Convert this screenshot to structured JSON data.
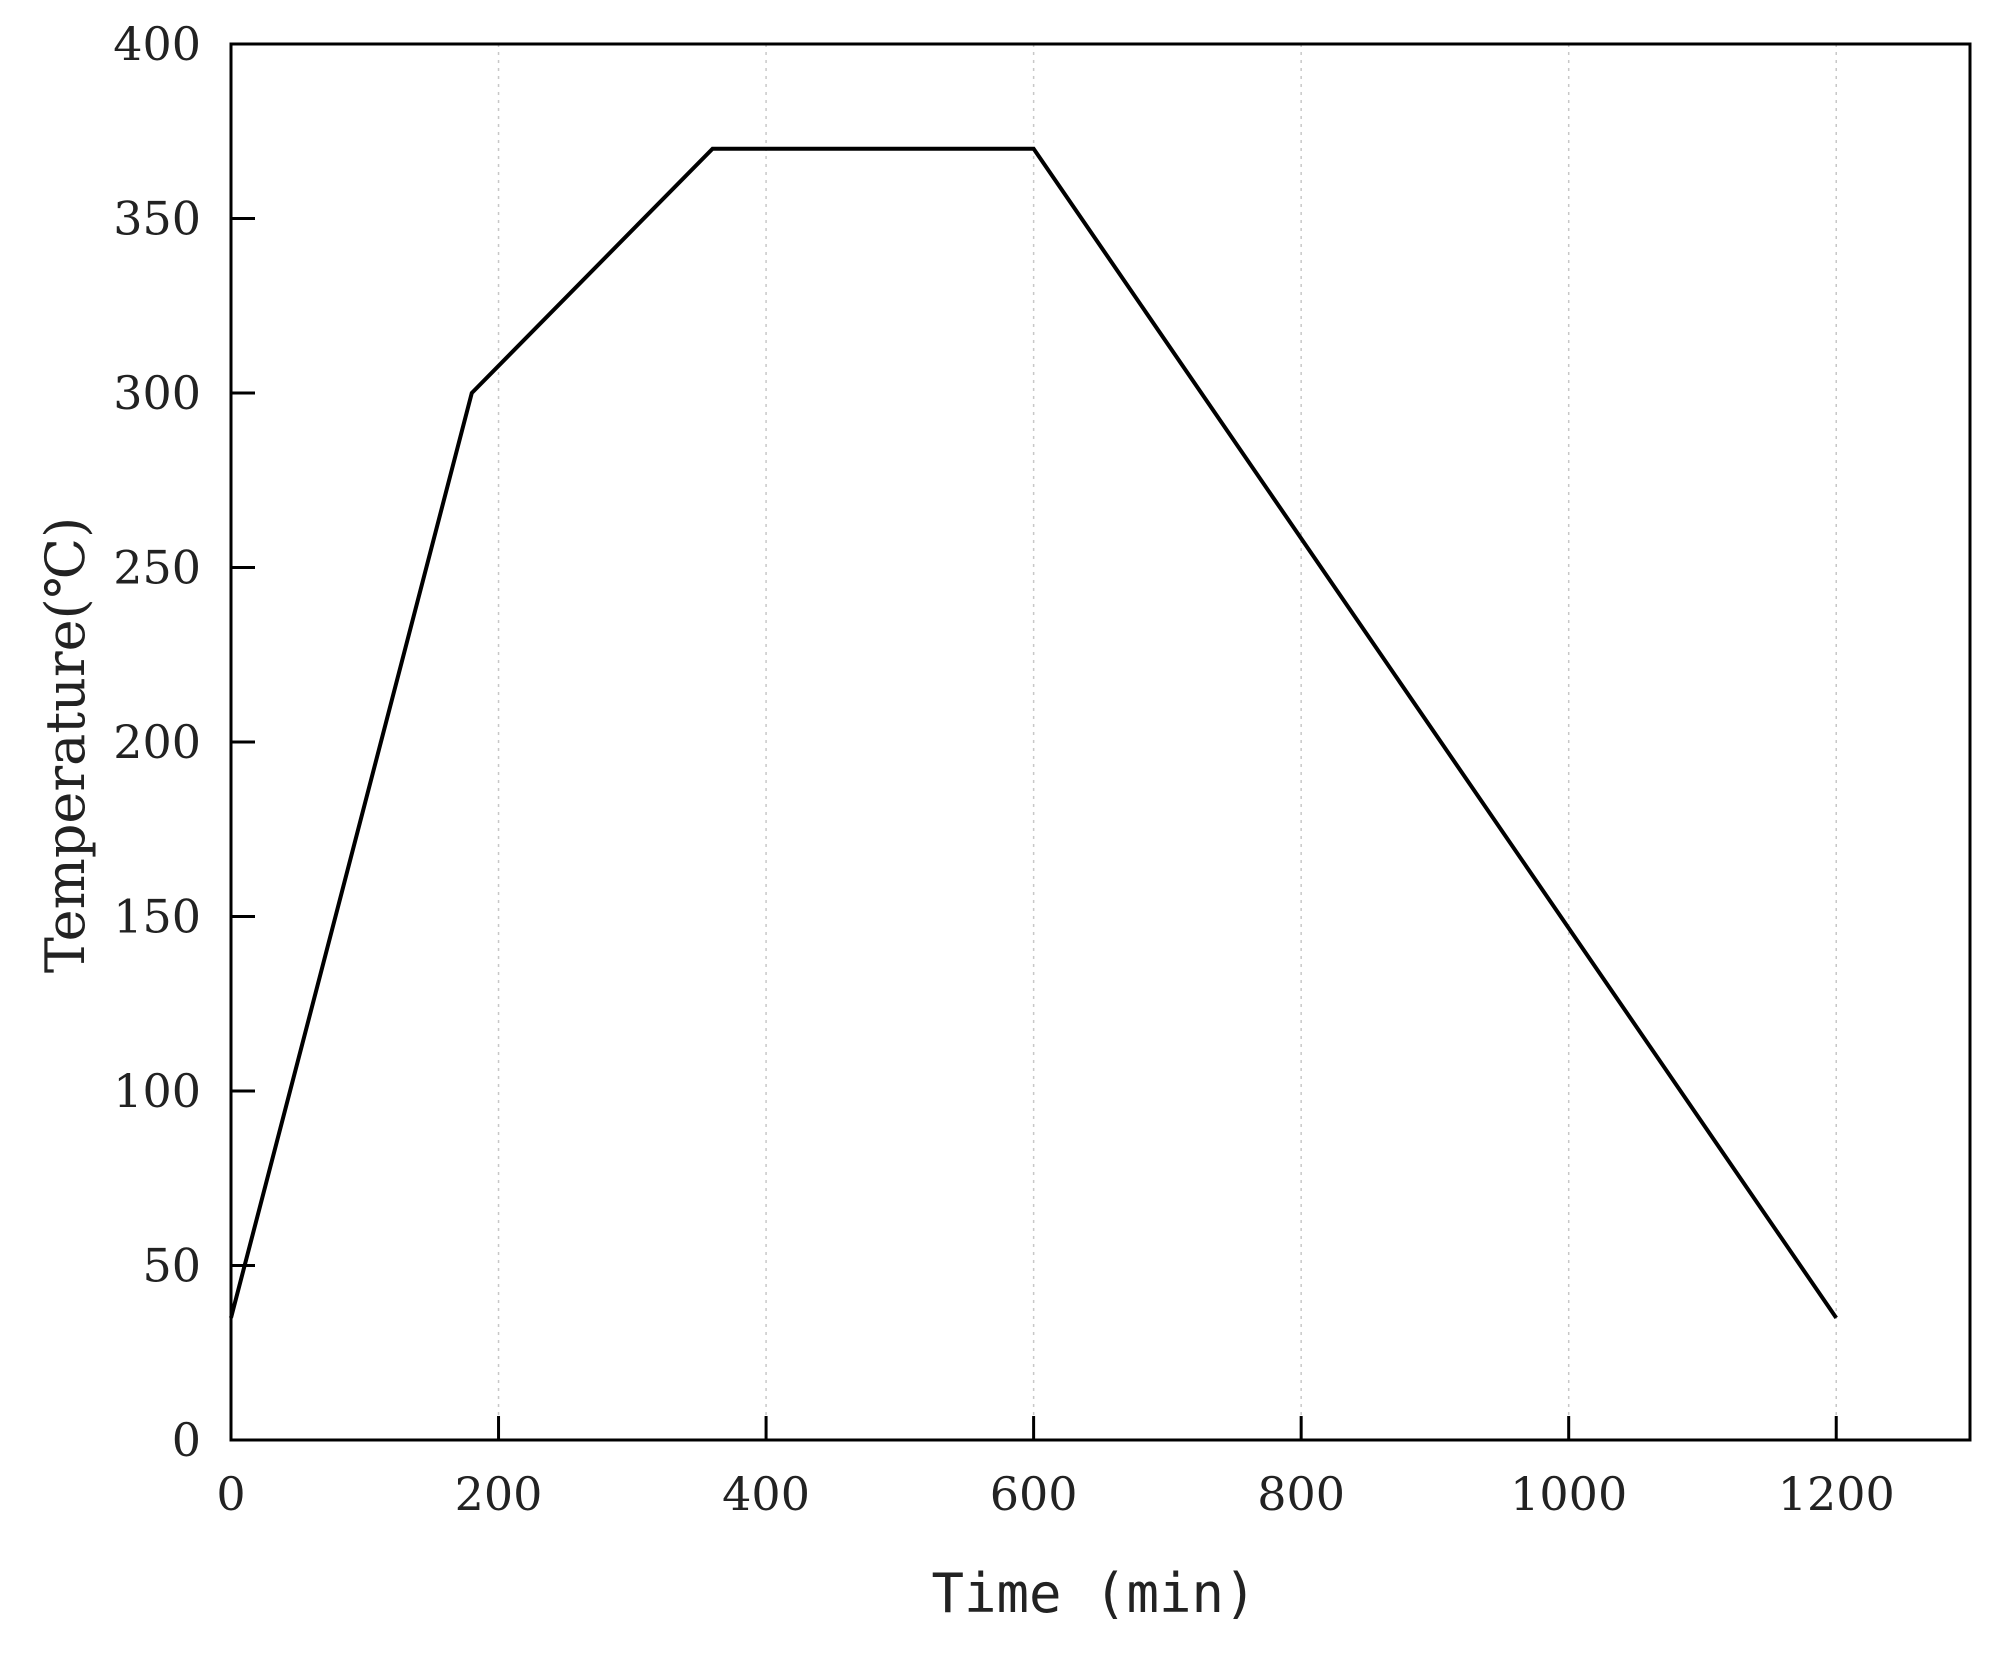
{
  "chart_data": {
    "type": "line",
    "title": "",
    "xlabel": "Time (min)",
    "ylabel": "Temperature(℃)",
    "xlim": [
      0,
      1300
    ],
    "ylim": [
      0,
      400
    ],
    "xticks": [
      0,
      200,
      400,
      600,
      800,
      1000,
      1200
    ],
    "yticks": [
      0,
      50,
      100,
      150,
      200,
      250,
      300,
      350,
      400
    ],
    "xtick_labels": [
      "0",
      "200",
      "400",
      "600",
      "800",
      "1000",
      "1200"
    ],
    "ytick_labels": [
      "0",
      "50",
      "100",
      "150",
      "200",
      "250",
      "300",
      "350",
      "400"
    ],
    "grid": "vertical dotted at x ticks",
    "legend": "none",
    "colors": {
      "line": "#000000",
      "axes": "#000000",
      "grid": "#c8c8c8",
      "text": "#222222"
    },
    "series": [
      {
        "x": [
          0,
          180,
          360,
          600,
          1200
        ],
        "y": [
          35,
          300,
          370,
          370,
          35
        ]
      }
    ]
  }
}
